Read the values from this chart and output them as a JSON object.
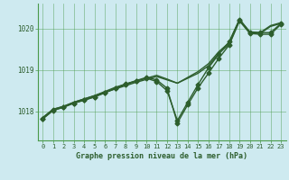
{
  "xlabel": "Graphe pression niveau de la mer (hPa)",
  "background_color": "#ceeaf0",
  "grid_color": "#4a9a4a",
  "line_color": "#2d5e2d",
  "xlim": [
    -0.5,
    23.5
  ],
  "ylim": [
    1017.3,
    1020.6
  ],
  "yticks": [
    1018,
    1019,
    1020
  ],
  "xticks": [
    0,
    1,
    2,
    3,
    4,
    5,
    6,
    7,
    8,
    9,
    10,
    11,
    12,
    13,
    14,
    15,
    16,
    17,
    18,
    19,
    20,
    21,
    22,
    23
  ],
  "series_no_marker": [
    [
      1017.85,
      1018.05,
      1018.12,
      1018.22,
      1018.3,
      1018.38,
      1018.46,
      1018.54,
      1018.62,
      1018.7,
      1018.77,
      1018.84,
      1018.76,
      1018.68,
      1018.8,
      1018.92,
      1019.1,
      1019.4,
      1019.62,
      1020.2,
      1019.9,
      1019.88,
      1020.05,
      1020.12
    ],
    [
      1017.85,
      1018.05,
      1018.12,
      1018.22,
      1018.3,
      1018.38,
      1018.48,
      1018.58,
      1018.66,
      1018.73,
      1018.8,
      1018.87,
      1018.78,
      1018.68,
      1018.82,
      1018.96,
      1019.15,
      1019.44,
      1019.66,
      1020.22,
      1019.92,
      1019.9,
      1020.07,
      1020.14
    ]
  ],
  "series_with_marker": [
    [
      1017.82,
      1018.03,
      1018.1,
      1018.2,
      1018.27,
      1018.35,
      1018.45,
      1018.55,
      1018.65,
      1018.73,
      1018.8,
      1018.72,
      1018.5,
      1017.78,
      1018.22,
      1018.65,
      1019.05,
      1019.38,
      1019.68,
      1020.22,
      1019.9,
      1019.9,
      1019.9,
      1020.12
    ],
    [
      1017.82,
      1018.02,
      1018.1,
      1018.2,
      1018.27,
      1018.35,
      1018.45,
      1018.56,
      1018.66,
      1018.74,
      1018.82,
      1018.76,
      1018.56,
      1017.72,
      1018.16,
      1018.57,
      1018.92,
      1019.28,
      1019.6,
      1020.18,
      1019.88,
      1019.86,
      1019.86,
      1020.1
    ]
  ],
  "marker": "D",
  "marker_size": 2.5,
  "line_width": 1.0
}
